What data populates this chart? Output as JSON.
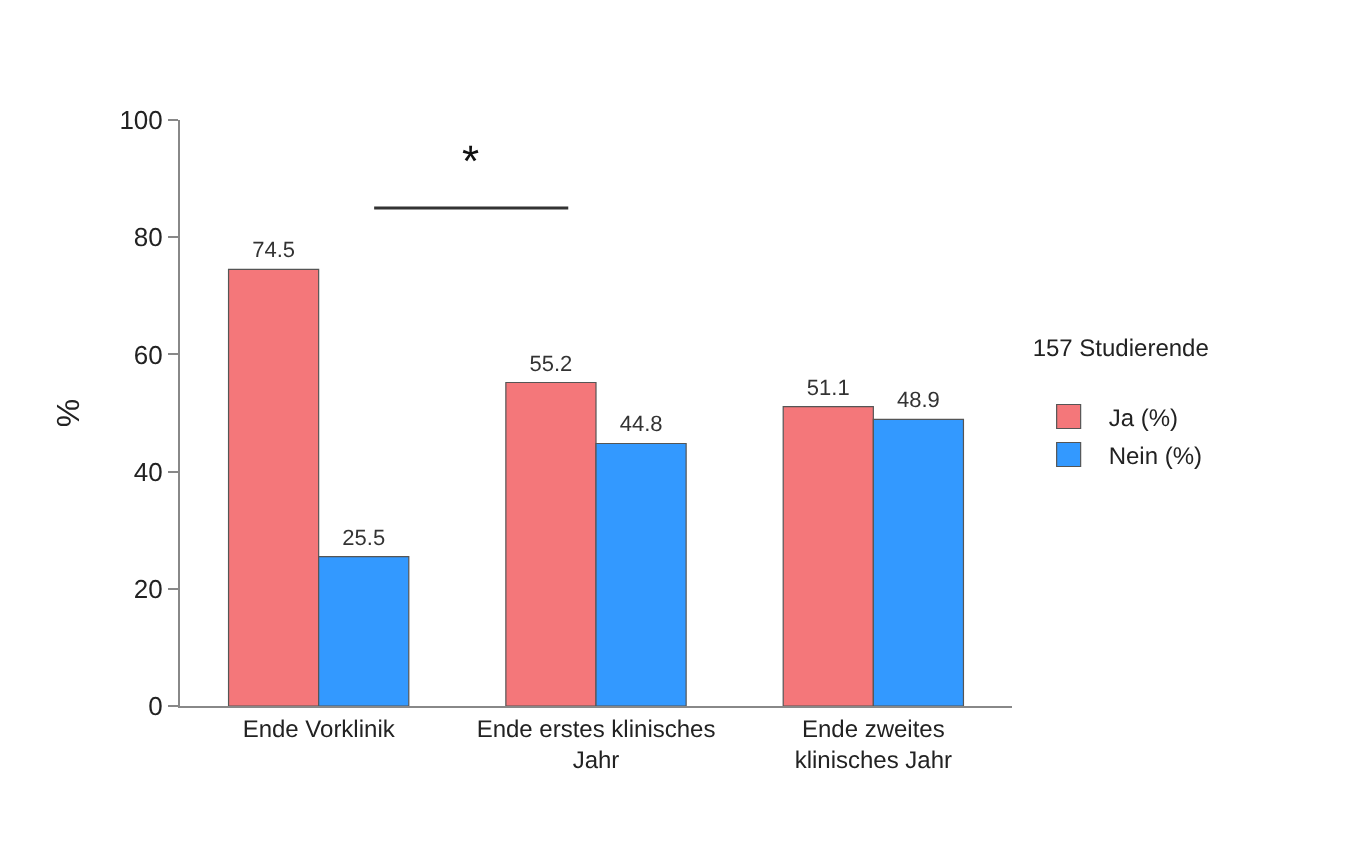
{
  "chart_data": {
    "type": "bar",
    "categories": [
      "Ende Vorklinik",
      "Ende erstes klinisches Jahr",
      "Ende zweites klinisches Jahr"
    ],
    "series": [
      {
        "name": "Ja (%)",
        "color": "#f4777a",
        "values": [
          74.5,
          55.2,
          51.1
        ]
      },
      {
        "name": "Nein (%)",
        "color": "#3399ff",
        "values": [
          25.5,
          44.8,
          48.9
        ]
      }
    ],
    "ylabel": "%",
    "legend_title": "157 Studierende",
    "legend": "right",
    "ylim": [
      0,
      100
    ],
    "yticks": [
      0,
      20,
      40,
      60,
      80,
      100
    ],
    "grid": false,
    "data_labels": true,
    "annotations": [
      "*"
    ]
  }
}
